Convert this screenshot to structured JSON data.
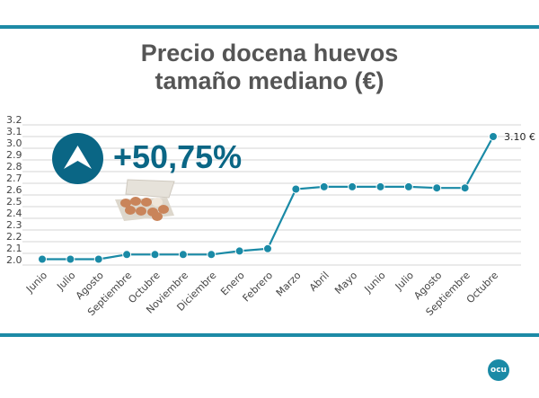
{
  "title_line1": "Precio docena huevos",
  "title_line2": "tamaño mediano (€)",
  "highlight": {
    "value_text": "+50,75%",
    "icon": "arrow-up-icon",
    "image": "egg-carton"
  },
  "logo_text": "ocu",
  "colors": {
    "accent": "#1d8aa6",
    "badge": "#0a6685",
    "line": "#1a8aa6"
  },
  "chart_data": {
    "type": "line",
    "title": "Precio docena huevos tamaño mediano (€)",
    "categories": [
      "Junio",
      "Julio",
      "Agosto",
      "Septiembre",
      "Octubre",
      "Noviembre",
      "Diciembre",
      "Enero",
      "Febrero",
      "Marzo",
      "Abril",
      "Mayo",
      "Junio",
      "Julio",
      "Agosto",
      "Septiembre",
      "Octubre"
    ],
    "values": [
      2.05,
      2.05,
      2.05,
      2.09,
      2.09,
      2.09,
      2.09,
      2.12,
      2.14,
      2.65,
      2.67,
      2.67,
      2.67,
      2.67,
      2.66,
      2.66,
      3.1
    ],
    "ylim": [
      2.0,
      3.2
    ],
    "yticks": [
      "2.0",
      "2.1",
      "2.2",
      "2.3",
      "2.4",
      "2.5",
      "2.6",
      "2.7",
      "2.8",
      "2.9",
      "3.0",
      "3.1",
      "3.2"
    ],
    "data_labels": [
      {
        "index": 16,
        "text": "3.10 €"
      }
    ],
    "grid": true
  }
}
